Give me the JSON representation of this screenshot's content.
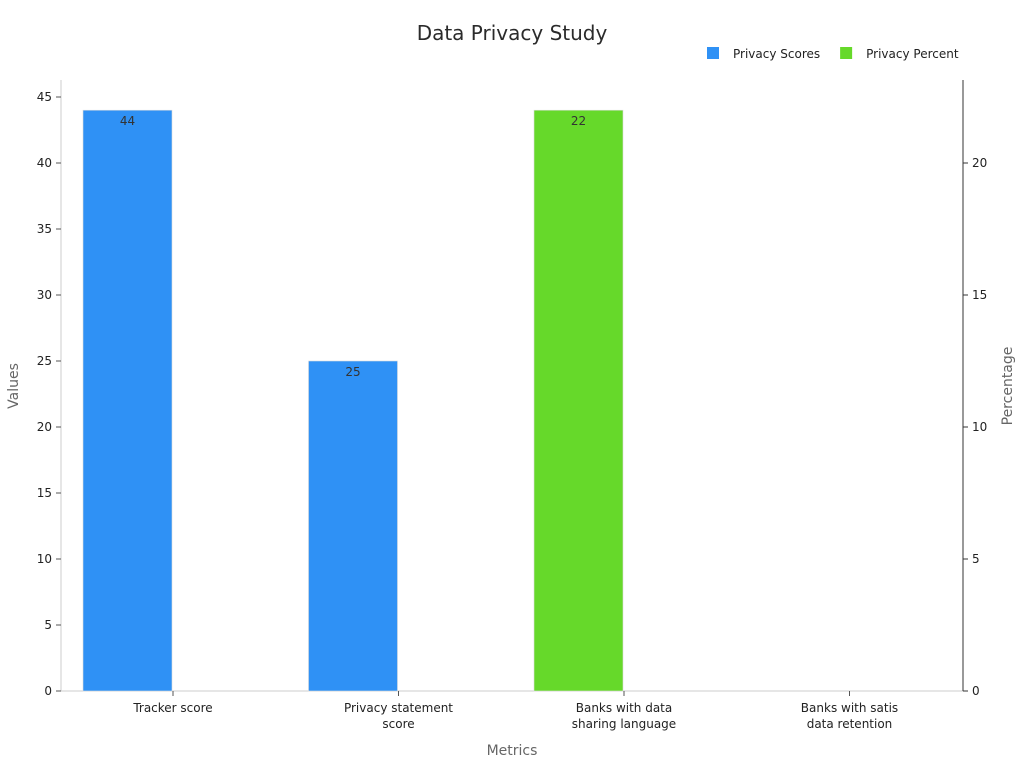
{
  "chart_data": {
    "type": "bar",
    "title": "Data Privacy Study",
    "xlabel": "Metrics",
    "ylabel": "Values",
    "y2label": "Percentage",
    "categories": [
      [
        "Tracker score"
      ],
      [
        "Privacy statement",
        "score"
      ],
      [
        "Banks with data",
        "sharing language"
      ],
      [
        "Banks with satis",
        "data retention"
      ]
    ],
    "ylim": [
      0,
      45
    ],
    "y2lim": [
      0,
      22.5
    ],
    "yticks": [
      0,
      5,
      10,
      15,
      20,
      25,
      30,
      35,
      40,
      45
    ],
    "y2ticks": [
      0,
      5,
      10,
      15,
      20
    ],
    "series": [
      {
        "name": "Privacy Scores",
        "axis": "left",
        "color": "#2f91f5",
        "values": [
          44,
          25,
          null,
          null
        ],
        "labels": [
          "44",
          "25",
          "",
          ""
        ]
      },
      {
        "name": "Privacy Percent",
        "axis": "right",
        "color": "#66d92a",
        "values": [
          null,
          null,
          22,
          null
        ],
        "labels": [
          "",
          "",
          "22",
          ""
        ]
      }
    ],
    "legend_position": "top-right",
    "grid": false
  }
}
